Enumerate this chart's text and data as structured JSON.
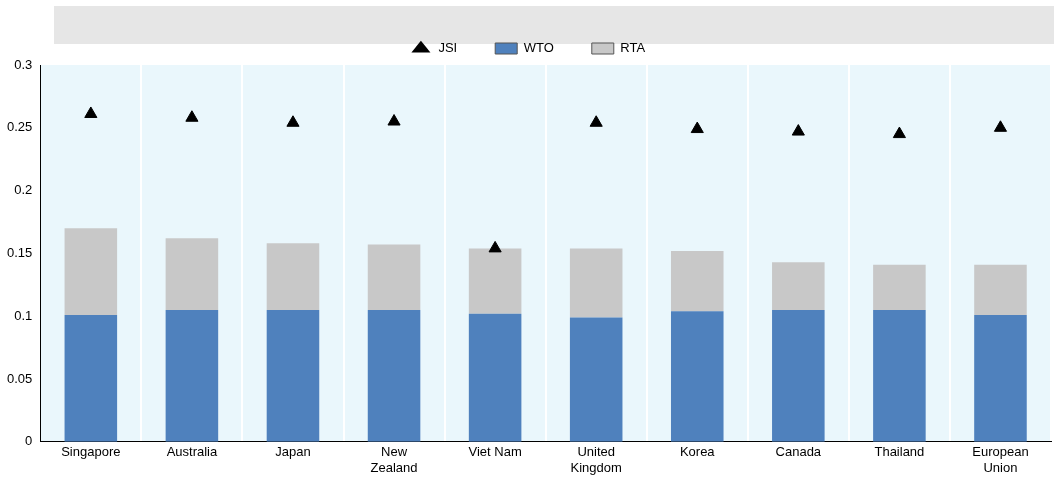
{
  "chart_data": {
    "type": "bar",
    "stacked": true,
    "categories": [
      "Singapore",
      "Australia",
      "Japan",
      "New Zealand",
      "Viet Nam",
      "United Kingdom",
      "Korea",
      "Canada",
      "Thailand",
      "European Union"
    ],
    "series": [
      {
        "name": "WTO",
        "color": "#4f81bd",
        "values": [
          0.101,
          0.105,
          0.105,
          0.105,
          0.102,
          0.099,
          0.104,
          0.105,
          0.105,
          0.101
        ]
      },
      {
        "name": "RTA",
        "color": "#c8c8c8",
        "values": [
          0.069,
          0.057,
          0.053,
          0.052,
          0.052,
          0.055,
          0.048,
          0.038,
          0.036,
          0.04
        ]
      },
      {
        "name": "JSI",
        "type": "scatter",
        "marker": "triangle",
        "color": "#000000",
        "x": [
          "Singapore",
          "Australia",
          "Japan",
          "New Zealand",
          "Viet Nam",
          "United Kingdom",
          "Korea",
          "Canada",
          "Thailand",
          "European Union"
        ],
        "values": [
          0.261,
          0.258,
          0.254,
          0.255,
          0.154,
          0.254,
          0.249,
          0.247,
          0.245,
          0.25
        ]
      }
    ],
    "ylim": [
      0,
      0.3
    ],
    "yticks": [
      0,
      0.05,
      0.1,
      0.15,
      0.2,
      0.25,
      0.3
    ],
    "grid": "x",
    "legend": "top"
  }
}
